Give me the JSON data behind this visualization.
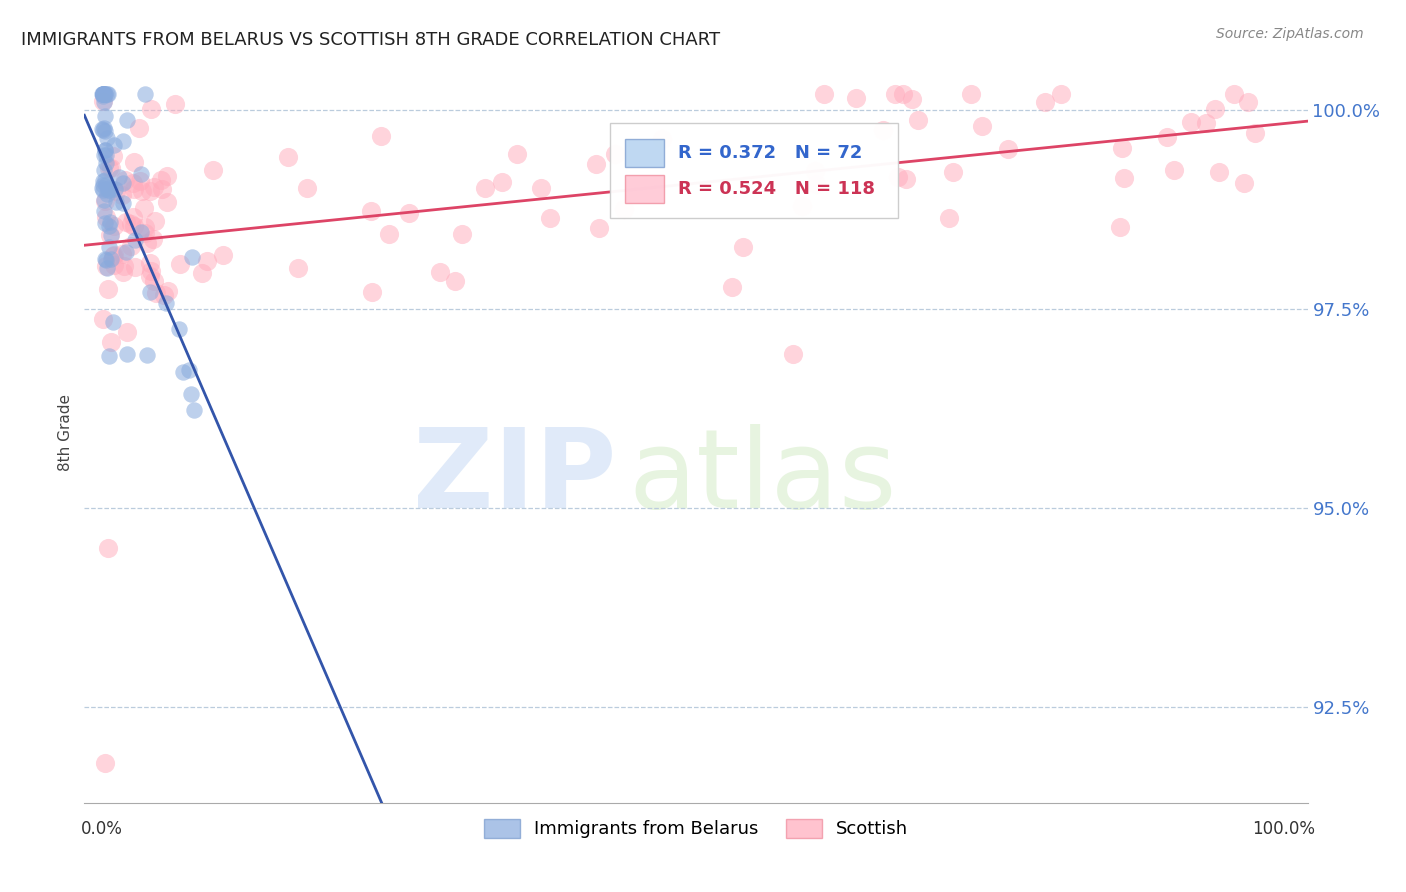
{
  "title": "IMMIGRANTS FROM BELARUS VS SCOTTISH 8TH GRADE CORRELATION CHART",
  "source": "Source: ZipAtlas.com",
  "ylabel": "8th Grade",
  "yticks": [
    92.5,
    95.0,
    97.5,
    100.0
  ],
  "ytick_labels": [
    "92.5%",
    "95.0%",
    "97.5%",
    "100.0%"
  ],
  "ymin": 91.3,
  "ymax": 100.6,
  "xmin": -1.5,
  "xmax": 102.0,
  "blue_R": 0.372,
  "blue_N": 72,
  "pink_R": 0.524,
  "pink_N": 118,
  "blue_color": "#88aadd",
  "pink_color": "#ffaabb",
  "blue_label": "Immigrants from Belarus",
  "pink_label": "Scottish"
}
